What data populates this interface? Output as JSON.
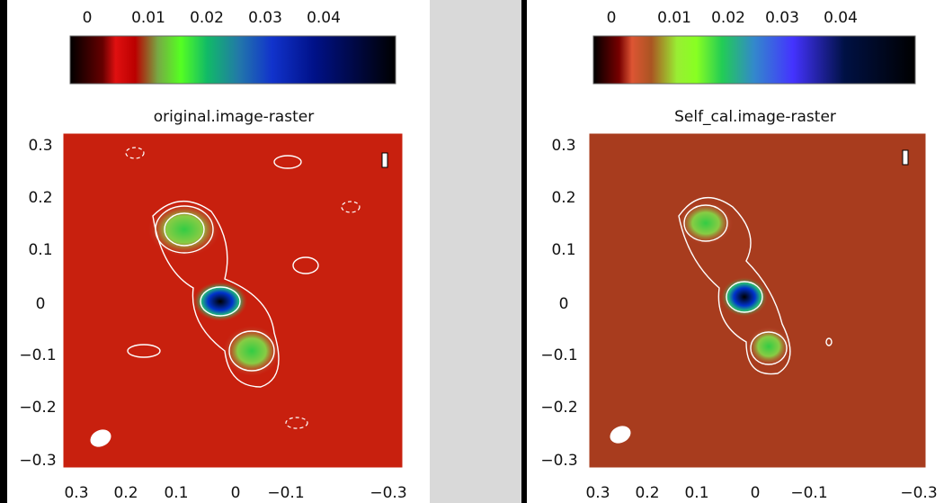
{
  "panels": [
    {
      "title": "original.image-raster",
      "colorbar_ticks": [
        "0",
        "0.01",
        "0.02",
        "0.03",
        "0.04"
      ],
      "yticks": [
        "0.3",
        "0.2",
        "0.1",
        "0",
        "−0.1",
        "−0.2",
        "−0.3"
      ],
      "xticks": [
        "0.3",
        "0.2",
        "0.1",
        "0",
        "−0.1",
        "−0.3"
      ]
    },
    {
      "title": "Self_cal.image-raster",
      "colorbar_ticks": [
        "0",
        "0.01",
        "0.02",
        "0.03",
        "0.04"
      ],
      "yticks": [
        "0.3",
        "0.2",
        "0.1",
        "0",
        "−0.1",
        "−0.2",
        "−0.3"
      ],
      "xticks": [
        "0.3",
        "0.2",
        "0.1",
        "0",
        "−0.1",
        "−0.3"
      ]
    }
  ]
}
